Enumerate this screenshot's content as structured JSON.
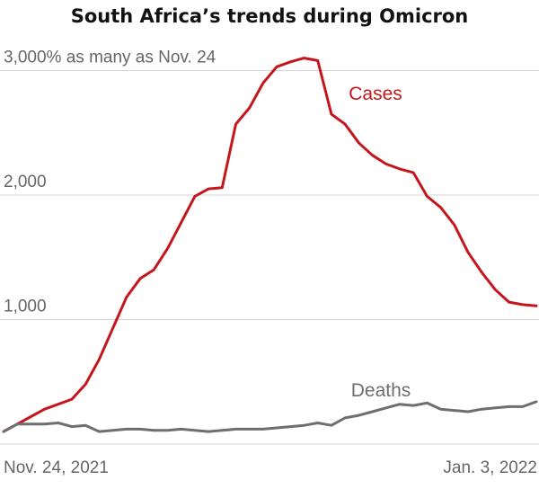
{
  "chart_data": {
    "type": "line",
    "title": "South Africa’s trends during Omicron",
    "y_ticks": [
      {
        "value": 3000,
        "label": "3,000% as many as Nov. 24"
      },
      {
        "value": 2000,
        "label": "2,000"
      },
      {
        "value": 1000,
        "label": "1,000"
      }
    ],
    "x_tick_labels": {
      "start": "Nov. 24, 2021",
      "end": "Jan. 3, 2022"
    },
    "ylim": [
      0,
      3100
    ],
    "grid": true,
    "series": [
      {
        "name": "Cases",
        "color": "#c4161c",
        "values": [
          100,
          160,
          220,
          280,
          320,
          360,
          480,
          680,
          930,
          1180,
          1330,
          1400,
          1570,
          1780,
          1990,
          2050,
          2060,
          2570,
          2700,
          2900,
          3030,
          3070,
          3100,
          3080,
          2650,
          2570,
          2420,
          2320,
          2250,
          2210,
          2180,
          1990,
          1900,
          1760,
          1540,
          1380,
          1240,
          1140,
          1120,
          1110
        ]
      },
      {
        "name": "Deaths",
        "color": "#6e6e6e",
        "values": [
          100,
          160,
          160,
          160,
          170,
          140,
          150,
          100,
          110,
          120,
          120,
          110,
          110,
          120,
          110,
          100,
          110,
          120,
          120,
          120,
          130,
          140,
          150,
          170,
          150,
          210,
          230,
          260,
          290,
          320,
          310,
          330,
          280,
          270,
          260,
          280,
          290,
          300,
          300,
          340
        ]
      }
    ]
  }
}
